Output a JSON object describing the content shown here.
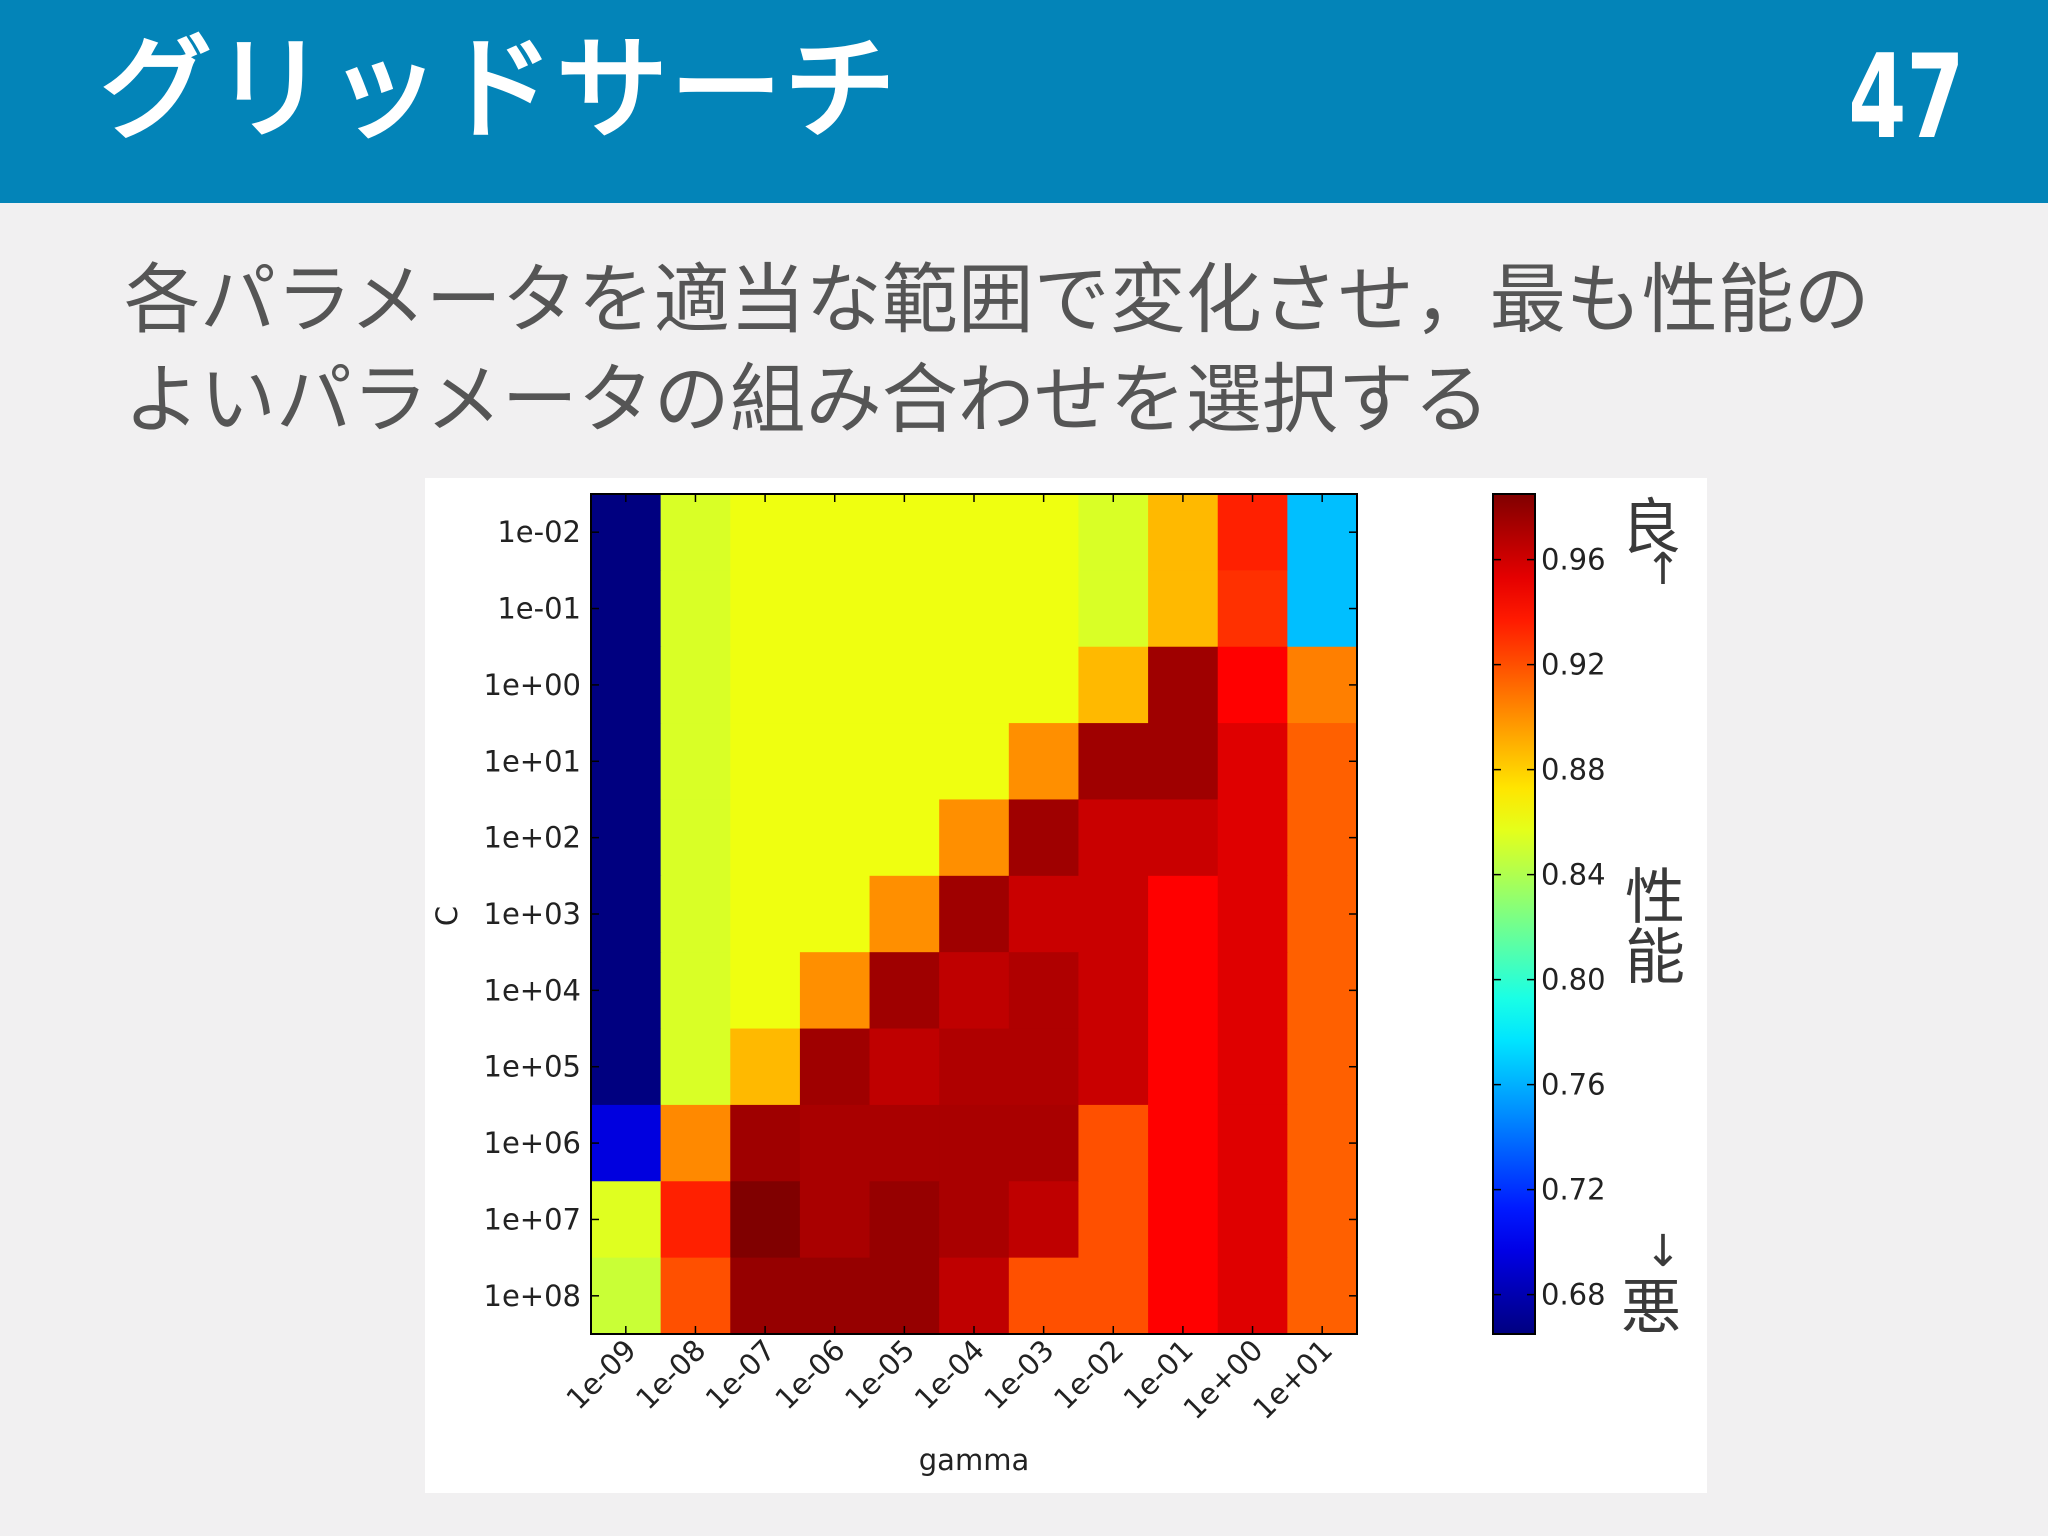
{
  "header": {
    "title": "グリッドサーチ",
    "page_number": "47",
    "background_color": "#0384b8"
  },
  "body": {
    "line1": "各パラメータを適当な範囲で変化させ，最も性能の",
    "line2": "よいパラメータの組み合わせを選択する"
  },
  "chart_data": {
    "type": "heatmap",
    "xlabel": "gamma",
    "ylabel": "C",
    "x_categories": [
      "1e-09",
      "1e-08",
      "1e-07",
      "1e-06",
      "1e-05",
      "1e-04",
      "1e-03",
      "1e-02",
      "1e-01",
      "1e+00",
      "1e+01"
    ],
    "y_categories": [
      "1e-02",
      "1e-01",
      "1e+00",
      "1e+01",
      "1e+02",
      "1e+03",
      "1e+04",
      "1e+05",
      "1e+06",
      "1e+07",
      "1e+08"
    ],
    "values": [
      [
        0.665,
        0.853,
        0.86,
        0.86,
        0.86,
        0.86,
        0.86,
        0.853,
        0.887,
        0.935,
        0.765
      ],
      [
        0.665,
        0.853,
        0.86,
        0.86,
        0.86,
        0.86,
        0.86,
        0.853,
        0.887,
        0.93,
        0.765
      ],
      [
        0.665,
        0.853,
        0.86,
        0.86,
        0.86,
        0.86,
        0.86,
        0.887,
        0.975,
        0.945,
        0.905
      ],
      [
        0.665,
        0.853,
        0.86,
        0.86,
        0.86,
        0.86,
        0.9,
        0.975,
        0.975,
        0.955,
        0.915
      ],
      [
        0.665,
        0.853,
        0.86,
        0.86,
        0.86,
        0.9,
        0.975,
        0.962,
        0.962,
        0.955,
        0.915
      ],
      [
        0.665,
        0.853,
        0.86,
        0.86,
        0.9,
        0.975,
        0.962,
        0.962,
        0.945,
        0.955,
        0.915
      ],
      [
        0.665,
        0.853,
        0.86,
        0.9,
        0.975,
        0.965,
        0.97,
        0.962,
        0.945,
        0.955,
        0.915
      ],
      [
        0.665,
        0.853,
        0.887,
        0.975,
        0.965,
        0.97,
        0.97,
        0.962,
        0.945,
        0.955,
        0.915
      ],
      [
        0.695,
        0.902,
        0.975,
        0.972,
        0.972,
        0.972,
        0.972,
        0.92,
        0.945,
        0.955,
        0.915
      ],
      [
        0.855,
        0.935,
        0.985,
        0.972,
        0.978,
        0.972,
        0.965,
        0.92,
        0.945,
        0.955,
        0.915
      ],
      [
        0.848,
        0.92,
        0.978,
        0.978,
        0.978,
        0.965,
        0.92,
        0.92,
        0.945,
        0.955,
        0.915
      ]
    ],
    "vmin": 0.665,
    "vmax": 0.985,
    "colormap": "jet",
    "colorbar_ticks": [
      "0.96",
      "0.92",
      "0.88",
      "0.84",
      "0.80",
      "0.76",
      "0.72",
      "0.68"
    ],
    "annotations": {
      "good": "良",
      "up_arrow": "↑",
      "performance_1": "性",
      "performance_2": "能",
      "down_arrow": "↓",
      "bad": "悪"
    }
  }
}
